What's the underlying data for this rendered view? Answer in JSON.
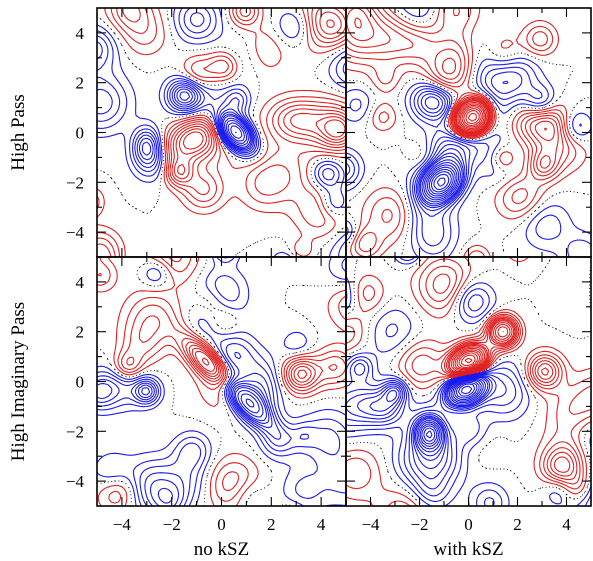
{
  "chart_data": {
    "type": "contour",
    "layout": "2x2 panel grid",
    "row_labels": [
      "High Pass",
      "High Imaginary Pass"
    ],
    "column_labels": [
      "no kSZ",
      "with kSZ"
    ],
    "x_ticks": [
      "−4",
      "−2",
      "0",
      "2",
      "4"
    ],
    "y_ticks": [
      "4",
      "2",
      "0",
      "−2",
      "−4"
    ],
    "xlim": [
      -5,
      5
    ],
    "ylim": [
      -5,
      5
    ],
    "colors": {
      "positive": "#e02020",
      "negative": "#1a1aee",
      "zero_contour": "#000000"
    },
    "panels": [
      {
        "row": "High Pass",
        "column": "no kSZ",
        "features": [
          {
            "sign": "negative",
            "x": 0.6,
            "y": 0.0,
            "sx": 0.35,
            "sy": 0.6,
            "rot": 40,
            "amp": 1.0
          },
          {
            "sign": "negative",
            "x": -1.5,
            "y": 1.5,
            "sx": 0.45,
            "sy": 0.45,
            "rot": 0,
            "amp": 0.45
          },
          {
            "sign": "negative",
            "x": -3.0,
            "y": -0.5,
            "sx": 0.4,
            "sy": 0.5,
            "rot": 0,
            "amp": 0.4
          },
          {
            "sign": "positive",
            "x": -1.2,
            "y": -0.3,
            "sx": 0.9,
            "sy": 0.55,
            "rot": 30,
            "amp": 0.45
          },
          {
            "sign": "positive",
            "x": -1.7,
            "y": -1.6,
            "sx": 0.4,
            "sy": 0.4,
            "rot": 0,
            "amp": 0.35
          },
          {
            "sign": "positive",
            "x": 3.0,
            "y": 0.5,
            "sx": 0.8,
            "sy": 0.6,
            "rot": 0,
            "amp": 0.35
          }
        ]
      },
      {
        "row": "High Pass",
        "column": "with kSZ",
        "features": [
          {
            "sign": "positive",
            "x": 0.2,
            "y": 0.6,
            "sx": 0.55,
            "sy": 0.45,
            "rot": 35,
            "amp": 1.6
          },
          {
            "sign": "negative",
            "x": -1.1,
            "y": -2.0,
            "sx": 0.6,
            "sy": 0.45,
            "rot": 40,
            "amp": 1.4
          },
          {
            "sign": "negative",
            "x": -1.4,
            "y": 1.3,
            "sx": 0.6,
            "sy": 0.55,
            "rot": 0,
            "amp": 0.5
          },
          {
            "sign": "negative",
            "x": -0.5,
            "y": -0.5,
            "sx": 1.2,
            "sy": 0.6,
            "rot": 35,
            "amp": 0.35
          },
          {
            "sign": "positive",
            "x": 3.0,
            "y": 0.4,
            "sx": 0.8,
            "sy": 0.6,
            "rot": 0,
            "amp": 0.35
          }
        ]
      },
      {
        "row": "High Imaginary Pass",
        "column": "no kSZ",
        "features": [
          {
            "sign": "negative",
            "x": 0.8,
            "y": -0.6,
            "sx": 0.35,
            "sy": 1.1,
            "rot": 45,
            "amp": 0.8
          },
          {
            "sign": "positive",
            "x": -0.4,
            "y": 0.6,
            "sx": 0.35,
            "sy": 1.0,
            "rot": 45,
            "amp": 0.8
          },
          {
            "sign": "negative",
            "x": -3.0,
            "y": -0.4,
            "sx": 0.35,
            "sy": 0.35,
            "rot": 0,
            "amp": 0.4
          },
          {
            "sign": "positive",
            "x": 3.2,
            "y": 0.3,
            "sx": 0.5,
            "sy": 0.5,
            "rot": 0,
            "amp": 0.45
          },
          {
            "sign": "negative",
            "x": 1.5,
            "y": -0.3,
            "sx": 0.6,
            "sy": 0.8,
            "rot": 0,
            "amp": 0.3
          }
        ]
      },
      {
        "row": "High Imaginary Pass",
        "column": "with kSZ",
        "features": [
          {
            "sign": "positive",
            "x": 0.0,
            "y": 0.8,
            "sx": 0.55,
            "sy": 0.4,
            "rot": 30,
            "amp": 1.4
          },
          {
            "sign": "negative",
            "x": -0.1,
            "y": -0.3,
            "sx": 0.55,
            "sy": 0.4,
            "rot": 30,
            "amp": 1.4
          },
          {
            "sign": "positive",
            "x": 1.4,
            "y": 2.0,
            "sx": 0.4,
            "sy": 0.4,
            "rot": 0,
            "amp": 0.9
          },
          {
            "sign": "negative",
            "x": -1.6,
            "y": -2.1,
            "sx": 0.35,
            "sy": 0.4,
            "rot": 0,
            "amp": 0.9
          },
          {
            "sign": "positive",
            "x": 3.1,
            "y": 0.4,
            "sx": 0.5,
            "sy": 0.5,
            "rot": 0,
            "amp": 0.45
          },
          {
            "sign": "negative",
            "x": -3.0,
            "y": -0.4,
            "sx": 0.35,
            "sy": 0.35,
            "rot": 0,
            "amp": 0.4
          }
        ]
      }
    ]
  }
}
